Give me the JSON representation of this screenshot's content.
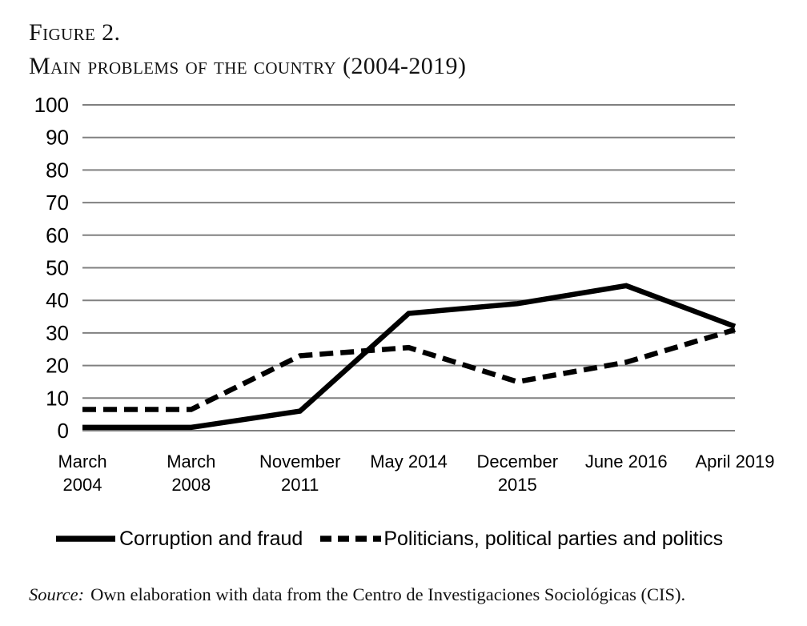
{
  "header": {
    "figure_label": "Figure 2.",
    "title": "Main problems of the country (2004-2019)"
  },
  "chart_data": {
    "type": "line",
    "title": "Main problems of the country (2004-2019)",
    "categories": [
      "March 2004",
      "March 2008",
      "November 2011",
      "May 2014",
      "December 2015",
      "June 2016",
      "April 2019"
    ],
    "category_tick_lines": [
      [
        "March",
        "2004"
      ],
      [
        "March",
        "2008"
      ],
      [
        "November",
        "2011"
      ],
      [
        "May 2014"
      ],
      [
        "December",
        "2015"
      ],
      [
        "June 2016"
      ],
      [
        "April 2019"
      ]
    ],
    "series": [
      {
        "name": "Corruption and fraud",
        "style": "solid",
        "color": "#000000",
        "values": [
          1,
          1,
          6,
          36,
          39,
          44.5,
          32
        ]
      },
      {
        "name": "Politicians, political parties and politics",
        "style": "dashed",
        "color": "#000000",
        "values": [
          6.5,
          6.5,
          23,
          25.5,
          15,
          21,
          31
        ]
      }
    ],
    "xlabel": "",
    "ylabel": "",
    "ylim": [
      0,
      100
    ],
    "ytick_step": 10,
    "ytick_labels": [
      "0",
      "10",
      "20",
      "30",
      "40",
      "50",
      "60",
      "70",
      "80",
      "90",
      "100"
    ],
    "grid": "horizontal",
    "gridline_color": "#808080",
    "legend_position": "bottom"
  },
  "footer": {
    "source_label": "Source:",
    "source_text": "Own elaboration with data from the Centro de Investigaciones Sociológicas (CIS)."
  }
}
